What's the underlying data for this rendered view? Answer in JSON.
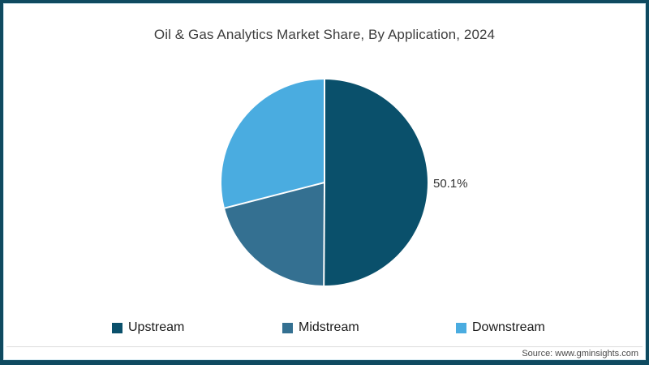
{
  "page": {
    "background": "#ffffff",
    "border_color": "#0f4a60"
  },
  "title": "Oil & Gas Analytics Market Share, By Application, 2024",
  "source": "Source: www.gminsights.com",
  "chart_data": {
    "type": "pie",
    "title": "Oil & Gas Analytics Market Share, By Application, 2024",
    "start_angle_deg": 0,
    "direction": "clockwise",
    "legend_position": "bottom",
    "seam_color": "#ffffff",
    "slices": [
      {
        "label": "Upstream",
        "value": 50.1,
        "color": "#0a506b",
        "data_label": "50.1%"
      },
      {
        "label": "Midstream",
        "value": 20.9,
        "color": "#347091",
        "data_label": ""
      },
      {
        "label": "Downstream",
        "value": 29.0,
        "color": "#4aace0",
        "data_label": ""
      }
    ]
  }
}
